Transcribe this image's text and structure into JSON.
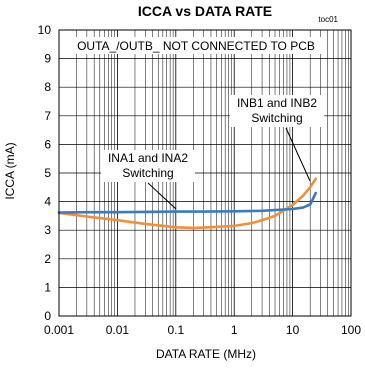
{
  "chart_data": {
    "type": "line",
    "title": "ICCA vs DATA RATE",
    "tag": "toc01",
    "xlabel": "DATA RATE (MHz)",
    "ylabel": "ICCA (mA)",
    "x_scale": "log",
    "xlim": [
      0.001,
      100
    ],
    "ylim": [
      0,
      10
    ],
    "x_ticks": [
      "0.001",
      "0.01",
      "0.1",
      "1",
      "10",
      "100"
    ],
    "y_ticks": [
      "0",
      "1",
      "2",
      "3",
      "4",
      "5",
      "6",
      "7",
      "8",
      "9",
      "10"
    ],
    "grid": true,
    "note": "OUTA_/OUTB_   NOT CONNECTED   TO  PCB",
    "series": [
      {
        "name": "INA1 and INA2 Switching",
        "color": "#3a7bbf",
        "x": [
          0.001,
          0.003,
          0.01,
          0.03,
          0.1,
          0.3,
          1,
          3,
          10,
          15,
          20,
          25
        ],
        "y": [
          3.62,
          3.63,
          3.63,
          3.64,
          3.65,
          3.65,
          3.66,
          3.68,
          3.74,
          3.79,
          3.9,
          4.3
        ]
      },
      {
        "name": "INB1 and INB2 Switching",
        "color": "#f0913a",
        "x": [
          0.001,
          0.003,
          0.01,
          0.03,
          0.1,
          0.2,
          0.3,
          1,
          2,
          3,
          5,
          10,
          15,
          20,
          25
        ],
        "y": [
          3.6,
          3.48,
          3.35,
          3.22,
          3.1,
          3.08,
          3.09,
          3.15,
          3.25,
          3.35,
          3.5,
          3.88,
          4.2,
          4.5,
          4.8
        ]
      }
    ]
  }
}
